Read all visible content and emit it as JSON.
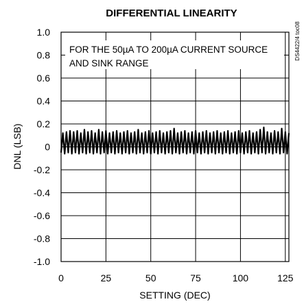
{
  "chart_data": {
    "type": "line",
    "title": "DIFFERENTIAL LINEARITY",
    "xlabel": "SETTING (DEC)",
    "ylabel": "DNL (LSB)",
    "xlim": [
      0,
      127
    ],
    "ylim": [
      -1.0,
      1.0
    ],
    "x_ticks": [
      "0",
      "25",
      "50",
      "75",
      "100",
      "125"
    ],
    "y_ticks": [
      "1.0",
      "0.8",
      "0.6",
      "0.4",
      "0.2",
      "0",
      "-0.2",
      "-0.4",
      "-0.6",
      "-0.8",
      "-1.0"
    ],
    "grid": true,
    "annotation_lines": [
      "FOR THE 50µA TO 200µA CURRENT SOURCE",
      "AND SINK RANGE"
    ],
    "side_code": "DS4422/4 toc08",
    "series": [
      {
        "values": [
          -0.05,
          0.12,
          -0.06,
          0.13,
          -0.05,
          0.14,
          -0.06,
          0.13,
          -0.05,
          0.14,
          -0.06,
          0.12,
          -0.05,
          0.15,
          -0.06,
          0.13,
          -0.05,
          0.14,
          -0.06,
          0.12,
          -0.05,
          0.15,
          -0.06,
          0.13,
          -0.05,
          0.14,
          -0.06,
          0.12,
          -0.05,
          0.13,
          -0.06,
          0.14,
          -0.05,
          0.12,
          -0.06,
          0.13,
          -0.05,
          0.14,
          -0.06,
          0.12,
          -0.05,
          0.13,
          -0.06,
          0.15,
          -0.05,
          0.12,
          -0.06,
          0.13,
          -0.05,
          0.14,
          -0.06,
          0.12,
          -0.05,
          0.13,
          -0.06,
          0.14,
          -0.05,
          0.12,
          -0.06,
          0.13,
          -0.05,
          0.14,
          -0.06,
          0.16,
          -0.05,
          0.12,
          -0.06,
          0.13,
          -0.05,
          0.14,
          -0.06,
          0.12,
          -0.05,
          0.13,
          -0.06,
          0.14,
          -0.05,
          0.12,
          -0.06,
          0.13,
          -0.05,
          0.14,
          -0.06,
          0.12,
          -0.05,
          0.13,
          -0.06,
          0.14,
          -0.05,
          0.12,
          -0.06,
          0.13,
          -0.05,
          0.14,
          -0.06,
          0.12,
          -0.05,
          0.13,
          -0.06,
          0.14,
          -0.05,
          0.12,
          -0.06,
          0.13,
          -0.05,
          0.14,
          -0.06,
          0.12,
          -0.05,
          0.13,
          -0.06,
          0.15,
          -0.05,
          0.17,
          -0.06,
          0.13,
          -0.05,
          0.12,
          -0.06,
          0.14,
          -0.05,
          0.13,
          -0.06,
          0.16,
          -0.05,
          0.13,
          -0.06,
          0.12
        ]
      }
    ]
  },
  "colors": {
    "line": "#000000",
    "grid": "#000000",
    "background": "#ffffff"
  }
}
